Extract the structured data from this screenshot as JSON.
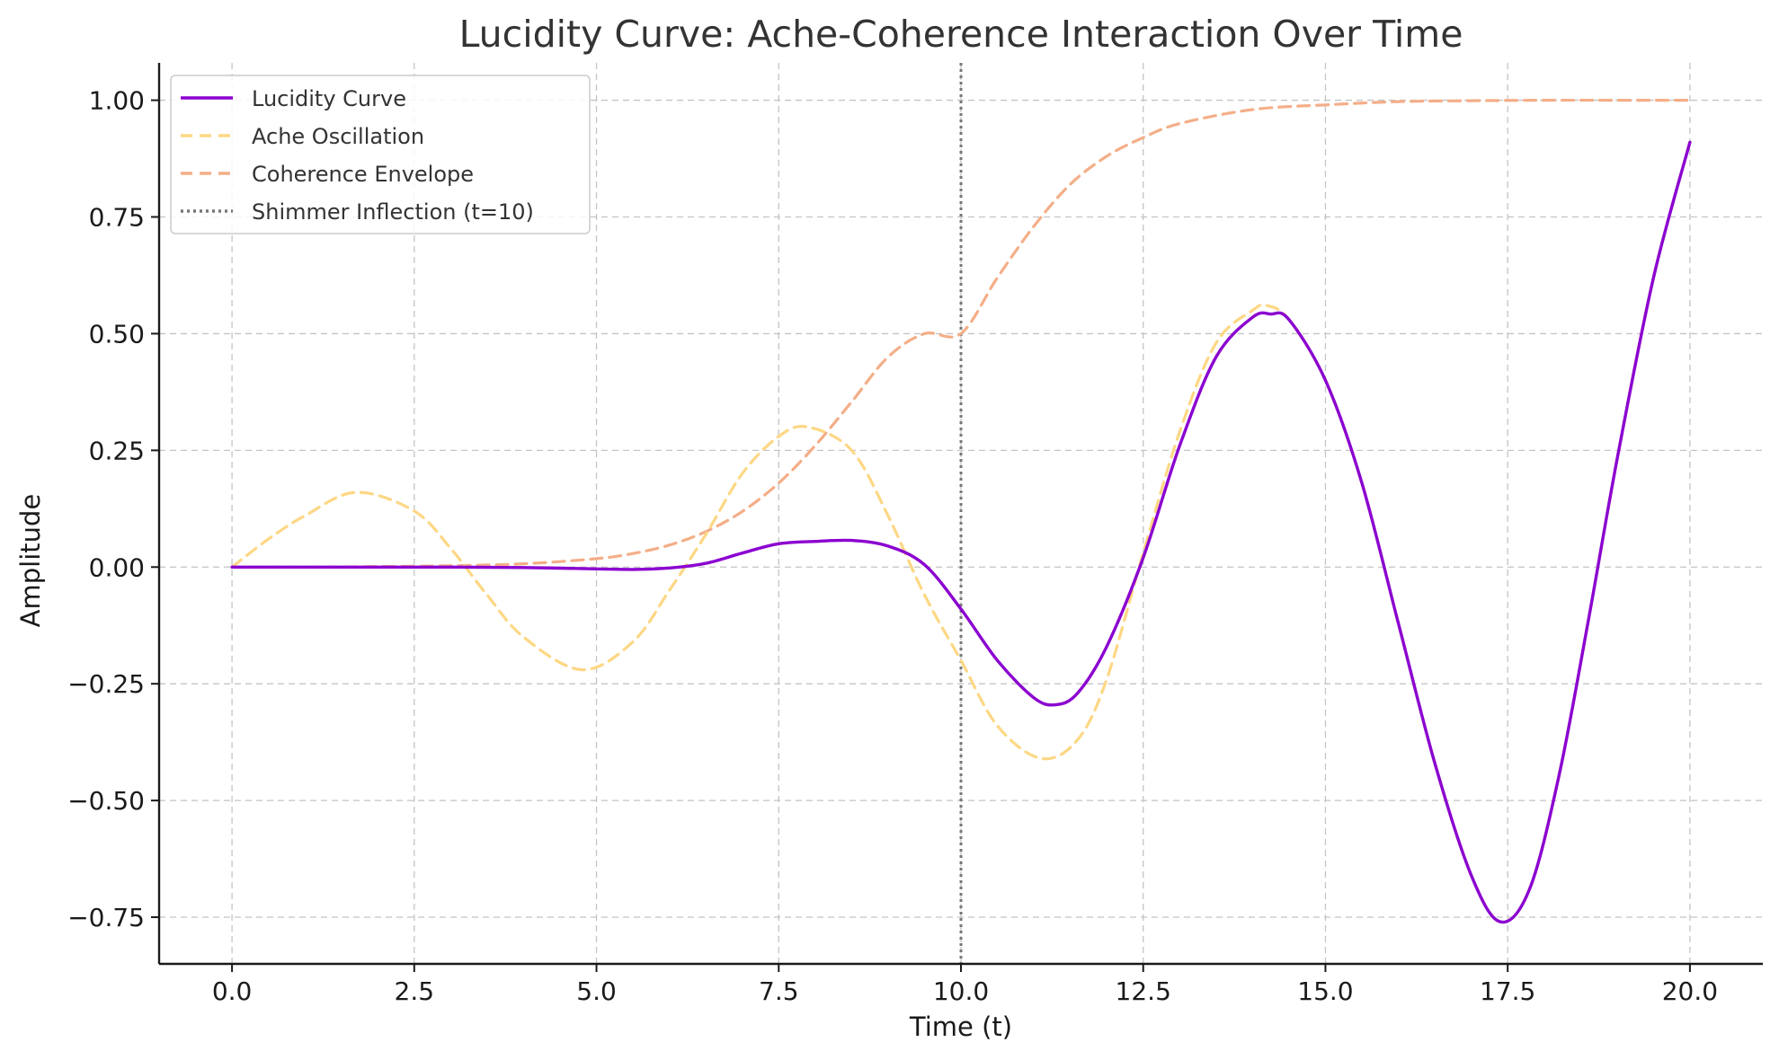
{
  "chart_data": {
    "type": "line",
    "title": "Lucidity Curve: Ache-Coherence Interaction Over Time",
    "xlabel": "Time (t)",
    "ylabel": "Amplitude",
    "xlim": [
      -1,
      21
    ],
    "ylim": [
      -0.85,
      1.08
    ],
    "x_ticks": [
      0,
      2.5,
      5,
      7.5,
      10,
      12.5,
      15,
      17.5,
      20
    ],
    "x_tick_labels": [
      "0.0",
      "2.5",
      "5.0",
      "7.5",
      "10.0",
      "12.5",
      "15.0",
      "17.5",
      "20.0"
    ],
    "y_ticks": [
      -0.75,
      -0.5,
      -0.25,
      0,
      0.25,
      0.5,
      0.75,
      1.0
    ],
    "y_tick_labels": [
      "−0.75",
      "−0.50",
      "−0.25",
      "0.00",
      "0.25",
      "0.50",
      "0.75",
      "1.00"
    ],
    "grid": true,
    "legend_position": "top-left",
    "series": [
      {
        "name": "Lucidity Curve",
        "color": "#8b00d0",
        "style": "solid",
        "x": [
          0,
          1,
          2,
          3,
          4,
          5,
          5.5,
          6,
          6.5,
          7,
          7.5,
          8,
          8.5,
          9,
          9.5,
          10,
          10.5,
          11,
          11.3,
          11.6,
          12,
          12.5,
          13,
          13.5,
          14,
          14.25,
          14.5,
          15,
          15.5,
          16,
          16.5,
          17,
          17.4,
          17.8,
          18.2,
          18.6,
          19,
          19.5,
          20
        ],
        "y": [
          0,
          0,
          0,
          0,
          -0.001,
          -0.004,
          -0.005,
          -0.002,
          0.008,
          0.03,
          0.05,
          0.055,
          0.057,
          0.045,
          0.005,
          -0.09,
          -0.2,
          -0.28,
          -0.295,
          -0.27,
          -0.17,
          0.02,
          0.26,
          0.45,
          0.535,
          0.542,
          0.53,
          0.4,
          0.18,
          -0.12,
          -0.42,
          -0.66,
          -0.76,
          -0.69,
          -0.45,
          -0.12,
          0.23,
          0.62,
          0.91
        ]
      },
      {
        "name": "Ache Oscillation",
        "color": "#fdd784",
        "style": "dashed",
        "x": [
          0,
          0.5,
          1,
          1.7,
          2.5,
          3,
          3.5,
          4,
          4.8,
          5.5,
          6,
          6.5,
          7,
          7.5,
          7.9,
          8.5,
          9,
          9.5,
          10,
          10.5,
          11.1,
          11.6,
          12,
          12.5,
          13,
          13.5,
          14,
          14.2,
          14.5,
          15,
          15.5,
          16,
          16.5,
          17,
          17.4,
          17.8,
          18.2,
          18.6,
          19,
          19.5,
          20
        ],
        "y": [
          0,
          0.06,
          0.11,
          0.16,
          0.12,
          0.04,
          -0.06,
          -0.15,
          -0.22,
          -0.16,
          -0.05,
          0.07,
          0.2,
          0.28,
          0.3,
          0.25,
          0.11,
          -0.06,
          -0.2,
          -0.34,
          -0.41,
          -0.37,
          -0.24,
          0.03,
          0.29,
          0.48,
          0.55,
          0.56,
          0.53,
          0.4,
          0.18,
          -0.12,
          -0.42,
          -0.66,
          -0.76,
          -0.69,
          -0.45,
          -0.12,
          0.23,
          0.62,
          0.91
        ]
      },
      {
        "name": "Coherence Envelope",
        "color": "#f4ae88",
        "style": "dashed",
        "x": [
          0,
          1,
          2,
          3,
          4,
          5,
          5.5,
          6,
          6.5,
          7,
          7.5,
          8,
          8.5,
          9,
          9.5,
          10,
          10.5,
          11,
          11.5,
          12,
          12.5,
          13,
          14,
          15,
          16,
          17,
          18,
          19,
          20
        ],
        "y": [
          0,
          0,
          0.001,
          0.003,
          0.007,
          0.018,
          0.029,
          0.047,
          0.076,
          0.119,
          0.18,
          0.26,
          0.354,
          0.45,
          0.5,
          0.5,
          0.62,
          0.73,
          0.82,
          0.88,
          0.92,
          0.95,
          0.98,
          0.99,
          0.997,
          0.999,
          1.0,
          1.0,
          1.0
        ]
      }
    ],
    "vline": {
      "name": "Shimmer Inflection (t=10)",
      "x": 10,
      "color": "#777777",
      "style": "dotted"
    }
  }
}
